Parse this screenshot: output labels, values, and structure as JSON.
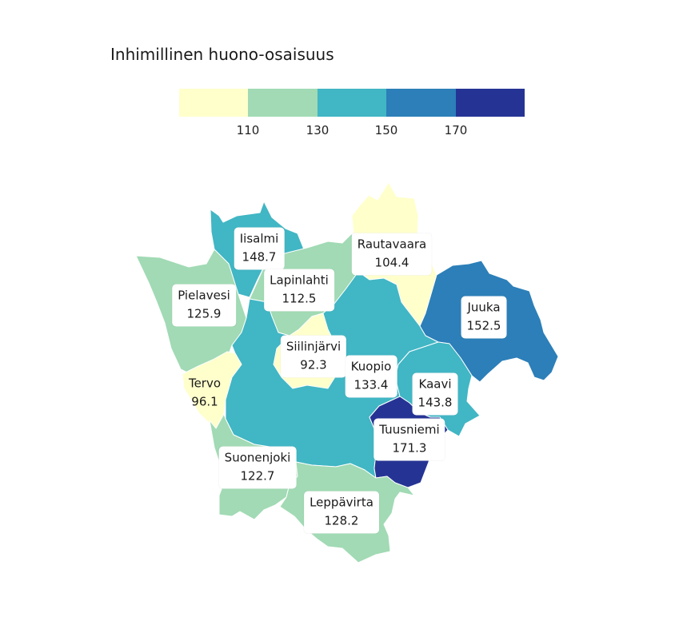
{
  "title": "Inhimillinen huono-osaisuus",
  "legend": {
    "colors": [
      "#ffffcc",
      "#a1dab4",
      "#41b6c4",
      "#2c7fb8",
      "#253494"
    ],
    "ticks": [
      "110",
      "130",
      "150",
      "170"
    ]
  },
  "regions": [
    {
      "key": "iisalmi",
      "name": "Iisalmi",
      "value": "148.7",
      "color": "#41b6c4"
    },
    {
      "key": "rautavaara",
      "name": "Rautavaara",
      "value": "104.4",
      "color": "#ffffcc"
    },
    {
      "key": "lapinlahti",
      "name": "Lapinlahti",
      "value": "112.5",
      "color": "#a1dab4"
    },
    {
      "key": "pielavesi",
      "name": "Pielavesi",
      "value": "125.9",
      "color": "#a1dab4"
    },
    {
      "key": "juuka",
      "name": "Juuka",
      "value": "152.5",
      "color": "#2c7fb8"
    },
    {
      "key": "siilinjarvi",
      "name": "Siilinjärvi",
      "value": "92.3",
      "color": "#ffffcc"
    },
    {
      "key": "kuopio",
      "name": "Kuopio",
      "value": "133.4",
      "color": "#41b6c4"
    },
    {
      "key": "kaavi",
      "name": "Kaavi",
      "value": "143.8",
      "color": "#41b6c4"
    },
    {
      "key": "tervo",
      "name": "Tervo",
      "value": "96.1",
      "color": "#ffffcc"
    },
    {
      "key": "tuusniemi",
      "name": "Tuusniemi",
      "value": "171.3",
      "color": "#253494"
    },
    {
      "key": "suonenjoki",
      "name": "Suonenjoki",
      "value": "122.7",
      "color": "#a1dab4"
    },
    {
      "key": "leppavirta",
      "name": "Leppävirta",
      "value": "128.2",
      "color": "#a1dab4"
    }
  ]
}
